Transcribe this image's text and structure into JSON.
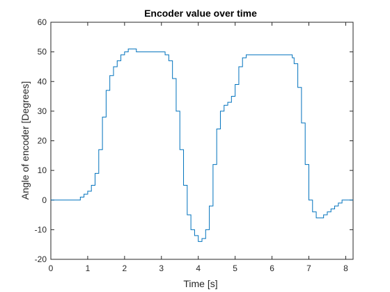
{
  "chart_data": {
    "type": "line",
    "title": "Encoder value over time",
    "xlabel": "Time [s]",
    "ylabel": "Angle of encoder [Degrees]",
    "xlim": [
      0,
      8.2
    ],
    "ylim": [
      -20,
      60
    ],
    "xticks": [
      0,
      1,
      2,
      3,
      4,
      5,
      6,
      7,
      8
    ],
    "yticks": [
      -20,
      -10,
      0,
      10,
      20,
      30,
      40,
      50,
      60
    ],
    "xtick_labels": [
      "0",
      "1",
      "2",
      "3",
      "4",
      "5",
      "6",
      "7",
      "8"
    ],
    "ytick_labels": [
      "-20",
      "-10",
      "0",
      "10",
      "20",
      "30",
      "40",
      "50",
      "60"
    ],
    "grid": false,
    "legend": false,
    "line_color": "#0072BD",
    "series": [
      {
        "x": [
          0,
          0.78,
          0.8,
          0.9,
          1.0,
          1.1,
          1.2,
          1.3,
          1.4,
          1.5,
          1.6,
          1.7,
          1.8,
          1.9,
          2.0,
          2.1,
          2.2,
          2.3,
          2.32,
          3.0,
          3.1,
          3.2,
          3.3,
          3.4,
          3.5,
          3.6,
          3.7,
          3.8,
          3.9,
          4.0,
          4.1,
          4.2,
          4.3,
          4.4,
          4.5,
          4.6,
          4.7,
          4.8,
          4.9,
          5.0,
          5.1,
          5.2,
          5.3,
          5.4,
          5.5,
          6.5,
          6.55,
          6.6,
          6.7,
          6.8,
          6.9,
          7.0,
          7.1,
          7.2,
          7.3,
          7.4,
          7.5,
          7.6,
          7.7,
          7.8,
          7.9,
          8.0,
          8.1,
          8.2
        ],
        "y": [
          0,
          0,
          1,
          2,
          3,
          5,
          9,
          17,
          28,
          37,
          42,
          45,
          47,
          49,
          50,
          51,
          51,
          51,
          50,
          50,
          49,
          47,
          41,
          30,
          17,
          5,
          -5,
          -10,
          -12,
          -14,
          -13,
          -10,
          -2,
          12,
          24,
          30,
          32,
          33,
          35,
          39,
          45,
          48,
          49,
          49,
          49,
          49,
          48,
          46,
          38,
          26,
          12,
          0,
          -4,
          -6,
          -6,
          -5,
          -4,
          -3,
          -2,
          -1,
          0,
          0,
          0,
          0
        ]
      }
    ]
  }
}
